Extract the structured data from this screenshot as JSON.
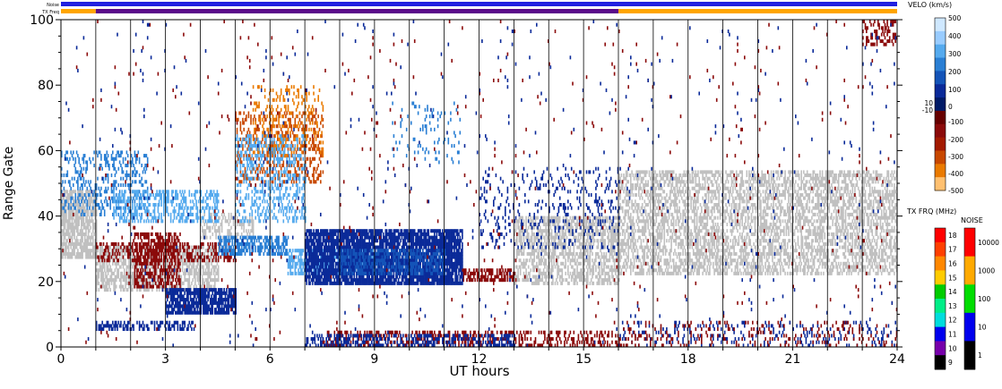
{
  "chart_data": {
    "type": "heatmap",
    "xlabel": "UT hours",
    "ylabel": "Range Gate",
    "xlim": [
      0,
      24
    ],
    "ylim": [
      0,
      100
    ],
    "x_ticks": [
      0,
      3,
      6,
      9,
      12,
      15,
      18,
      21,
      24
    ],
    "y_ticks": [
      0,
      20,
      40,
      60,
      80,
      100
    ],
    "grid": "vertical hourly lines",
    "status_bars": {
      "noise_label": "Noise",
      "txfreq_label": "TX Freq",
      "noise_segments": [
        {
          "start": 0,
          "end": 24,
          "color": "#2020e0"
        }
      ],
      "txfreq_segments": [
        {
          "start": 0,
          "end": 1,
          "color": "#ffa500"
        },
        {
          "start": 1,
          "end": 16,
          "color": "#5a0a8a"
        },
        {
          "start": 16,
          "end": 24,
          "color": "#ffa500"
        }
      ]
    },
    "velocity_scale": {
      "title": "VELO (km/s)",
      "ticks": [
        "500",
        "400",
        "300",
        "200",
        "100",
        "10",
        "0",
        "-10",
        "-100",
        "-200",
        "-300",
        "-400",
        "-500"
      ],
      "colors": [
        "#cfe8ff",
        "#99ccff",
        "#55aaee",
        "#2a7fd4",
        "#1454b8",
        "#0a2a99",
        "#001a66",
        "#660000",
        "#8b0a0a",
        "#a31a00",
        "#c84800",
        "#ea7a00",
        "#ffc070"
      ]
    },
    "freq_scale": {
      "title": "TX FRQ (MHz)",
      "ticks": [
        "18",
        "17",
        "16",
        "15",
        "14",
        "13",
        "12",
        "11",
        "10",
        "9"
      ],
      "colors": [
        "#ff0000",
        "#ff4000",
        "#ff8800",
        "#ffcc00",
        "#00cc00",
        "#00ee88",
        "#00dddd",
        "#0000ee",
        "#7700aa",
        "#000000"
      ]
    },
    "noise_scale": {
      "title": "NOISE",
      "ticks": [
        "10000",
        "1000",
        "100",
        "10",
        "1"
      ],
      "colors": [
        "#ff0000",
        "#ffaa00",
        "#00dd00",
        "#0000ee",
        "#000000"
      ]
    },
    "regions": [
      {
        "label": "ground scatter",
        "x0": 0.0,
        "x1": 1.0,
        "g0": 27,
        "g1": 48,
        "color": "#c0c0c0",
        "density": 0.75
      },
      {
        "label": "ground scatter",
        "x0": 1.0,
        "x1": 4.5,
        "g0": 17,
        "g1": 31,
        "color": "#c0c0c0",
        "density": 0.6
      },
      {
        "label": "ground scatter",
        "x0": 4.0,
        "x1": 5.5,
        "g0": 33,
        "g1": 41,
        "color": "#c0c0c0",
        "density": 0.4
      },
      {
        "label": "ground scatter",
        "x0": 13.0,
        "x1": 16.0,
        "g0": 19,
        "g1": 40,
        "color": "#c0c0c0",
        "density": 0.55
      },
      {
        "label": "ground scatter",
        "x0": 16.0,
        "x1": 24.0,
        "g0": 22,
        "g1": 54,
        "color": "#c0c0c0",
        "density": 0.5
      },
      {
        "label": "negative velocity",
        "x0": 2.1,
        "x1": 3.4,
        "g0": 18,
        "g1": 35,
        "color": "#8b0a0a",
        "density": 0.55
      },
      {
        "label": "negative velocity",
        "x0": 1.0,
        "x1": 5.0,
        "g0": 26,
        "g1": 32,
        "color": "#8b0a0a",
        "density": 0.35
      },
      {
        "label": "negative velocity",
        "x0": 11.5,
        "x1": 13.0,
        "g0": 20,
        "g1": 24,
        "color": "#8b0a0a",
        "density": 0.6
      },
      {
        "label": "negative velocity",
        "x0": 7.5,
        "x1": 16.0,
        "g0": 0,
        "g1": 5,
        "color": "#8b0a0a",
        "density": 0.35
      },
      {
        "label": "negative velocity",
        "x0": 5.0,
        "x1": 7.5,
        "g0": 50,
        "g1": 72,
        "color": "#c84800",
        "density": 0.25
      },
      {
        "label": "negative velocity",
        "x0": 5.5,
        "x1": 7.5,
        "g0": 58,
        "g1": 80,
        "color": "#ea7a00",
        "density": 0.2
      },
      {
        "label": "positive velocity",
        "x0": 0.0,
        "x1": 2.5,
        "g0": 40,
        "g1": 60,
        "color": "#2a7fd4",
        "density": 0.25
      },
      {
        "label": "positive velocity",
        "x0": 1.5,
        "x1": 4.5,
        "g0": 38,
        "g1": 48,
        "color": "#55aaee",
        "density": 0.45
      },
      {
        "label": "positive velocity",
        "x0": 4.5,
        "x1": 6.5,
        "g0": 28,
        "g1": 34,
        "color": "#2a7fd4",
        "density": 0.6
      },
      {
        "label": "positive velocity",
        "x0": 5.0,
        "x1": 7.0,
        "g0": 38,
        "g1": 65,
        "color": "#55aaee",
        "density": 0.3
      },
      {
        "label": "positive velocity",
        "x0": 6.5,
        "x1": 9.0,
        "g0": 22,
        "g1": 30,
        "color": "#55aaee",
        "density": 0.6
      },
      {
        "label": "positive velocity",
        "x0": 7.0,
        "x1": 11.5,
        "g0": 19,
        "g1": 36,
        "color": "#0a2a99",
        "density": 0.85
      },
      {
        "label": "positive velocity",
        "x0": 8.0,
        "x1": 11.0,
        "g0": 22,
        "g1": 30,
        "color": "#1454b8",
        "density": 0.5
      },
      {
        "label": "positive velocity",
        "x0": 3.0,
        "x1": 5.0,
        "g0": 10,
        "g1": 18,
        "color": "#0a2a99",
        "density": 0.8
      },
      {
        "label": "positive velocity",
        "x0": 1.0,
        "x1": 3.8,
        "g0": 5,
        "g1": 8,
        "color": "#0a2a99",
        "density": 0.45
      },
      {
        "label": "positive velocity",
        "x0": 7.0,
        "x1": 13.0,
        "g0": 0,
        "g1": 4,
        "color": "#0a2a99",
        "density": 0.4
      },
      {
        "label": "positive velocity",
        "x0": 12.0,
        "x1": 16.0,
        "g0": 30,
        "g1": 55,
        "color": "#0a2a99",
        "density": 0.12
      },
      {
        "label": "positive velocity",
        "x0": 9.5,
        "x1": 11.5,
        "g0": 55,
        "g1": 75,
        "color": "#2a7fd4",
        "density": 0.08
      },
      {
        "label": "positive velocity",
        "x0": 16.0,
        "x1": 24.0,
        "g0": 0,
        "g1": 8,
        "color": "#0a2a99",
        "density": 0.12
      },
      {
        "label": "negative velocity",
        "x0": 16.0,
        "x1": 24.0,
        "g0": 0,
        "g1": 8,
        "color": "#8b0a0a",
        "density": 0.1
      },
      {
        "label": "mixed",
        "x0": 23.0,
        "x1": 24.0,
        "g0": 92,
        "g1": 100,
        "color": "#8b0a0a",
        "density": 0.35
      },
      {
        "label": "mixed",
        "x0": 0.0,
        "x1": 24.0,
        "g0": 0,
        "g1": 100,
        "color": "#8b0a0a",
        "density": 0.008
      },
      {
        "label": "mixed",
        "x0": 0.0,
        "x1": 24.0,
        "g0": 0,
        "g1": 100,
        "color": "#0a2a99",
        "density": 0.008
      }
    ]
  }
}
